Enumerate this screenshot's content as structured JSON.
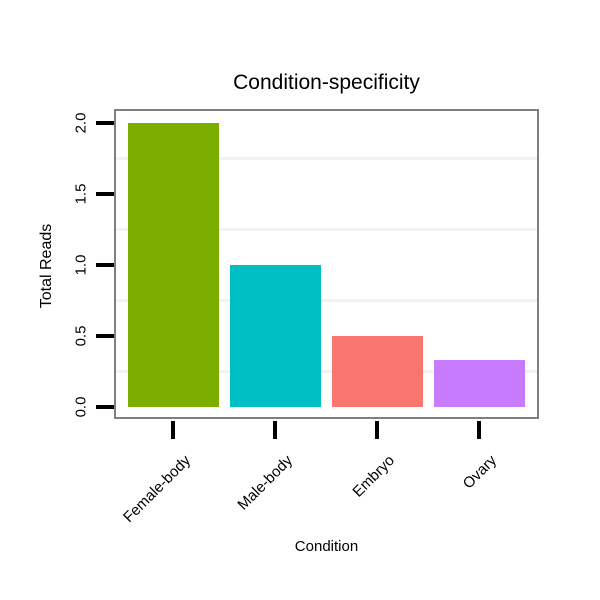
{
  "chart_data": {
    "type": "bar",
    "title": "Condition-specificity",
    "xlabel": "Condition",
    "ylabel": "Total Reads",
    "categories": [
      "Female-body",
      "Male-body",
      "Embryo",
      "Ovary"
    ],
    "values": [
      2.0,
      1.0,
      0.5,
      0.33
    ],
    "bar_colors": [
      "#7CAE00",
      "#00BFC4",
      "#F8766D",
      "#C77CFF"
    ],
    "ylim": [
      0,
      2.12
    ],
    "yticks": [
      0.0,
      0.5,
      1.0,
      1.5,
      2.0
    ],
    "ytick_labels": [
      "0.0",
      "0.5",
      "1.0",
      "1.5",
      "2.0"
    ],
    "minor_gridlines": [
      0.25,
      0.75,
      1.25,
      1.75
    ],
    "grid": "horizontal-minor-only",
    "legend": "none",
    "tick_label_rotation": {
      "x": 45,
      "y": 90
    },
    "colors": {
      "panel_border": "#7f7f7f",
      "gridline": "#f2f2f2",
      "tick": "#000000",
      "text": "#000000",
      "background": "#ffffff"
    }
  }
}
